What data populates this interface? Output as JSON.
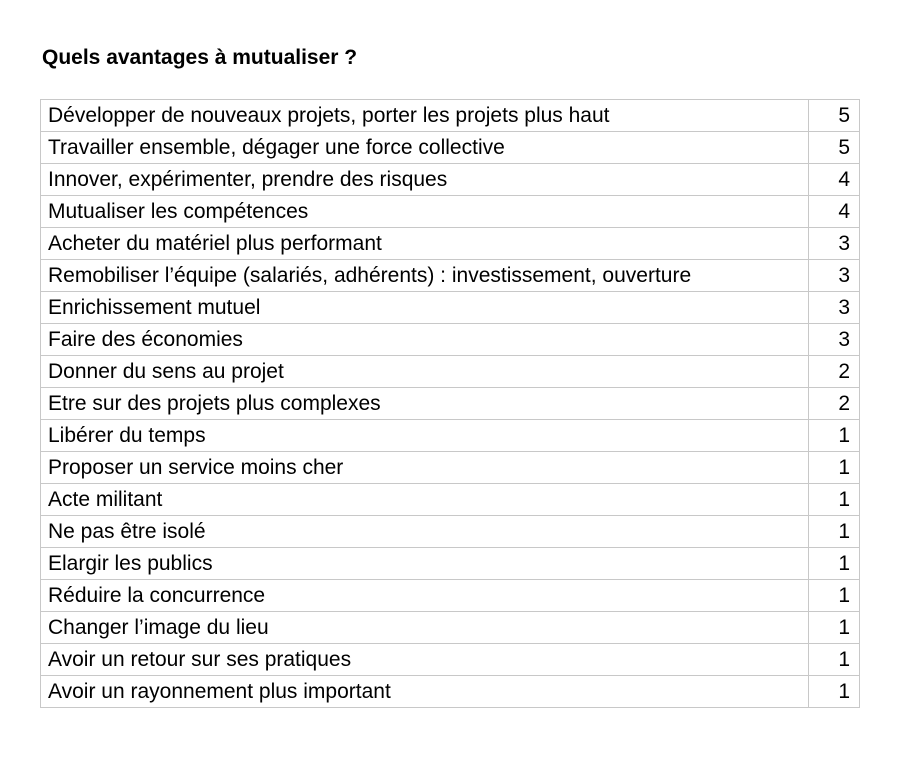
{
  "title": "Quels avantages à mutualiser ?",
  "rows": [
    {
      "label": "Développer de nouveaux projets, porter les projets plus haut",
      "count": "5"
    },
    {
      "label": "Travailler ensemble, dégager une force collective",
      "count": "5"
    },
    {
      "label": "Innover, expérimenter, prendre des risques",
      "count": "4"
    },
    {
      "label": "Mutualiser les compétences",
      "count": "4"
    },
    {
      "label": "Acheter du matériel plus performant",
      "count": "3"
    },
    {
      "label": "Remobiliser l’équipe (salariés, adhérents) : investissement, ouverture",
      "count": "3"
    },
    {
      "label": "Enrichissement mutuel",
      "count": "3"
    },
    {
      "label": "Faire des économies",
      "count": "3"
    },
    {
      "label": "Donner du sens au projet",
      "count": "2"
    },
    {
      "label": "Etre sur des projets plus complexes",
      "count": "2"
    },
    {
      "label": "Libérer du temps",
      "count": "1"
    },
    {
      "label": "Proposer un service moins cher",
      "count": "1"
    },
    {
      "label": "Acte militant",
      "count": "1"
    },
    {
      "label": "Ne pas être isolé",
      "count": "1"
    },
    {
      "label": "Elargir les publics",
      "count": "1"
    },
    {
      "label": "Réduire la concurrence",
      "count": "1"
    },
    {
      "label": "Changer l’image du lieu",
      "count": "1"
    },
    {
      "label": "Avoir un retour sur ses pratiques",
      "count": "1"
    },
    {
      "label": "Avoir un rayonnement plus important",
      "count": "1"
    }
  ]
}
